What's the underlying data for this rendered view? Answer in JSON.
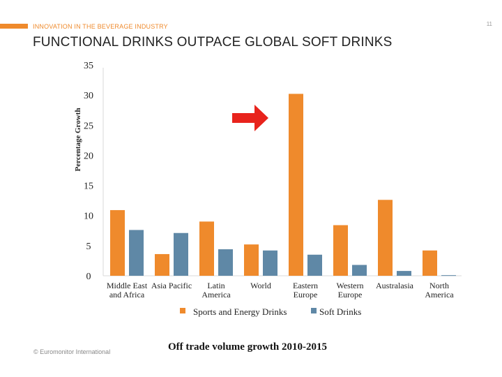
{
  "header": {
    "section": "INNOVATION IN THE BEVERAGE INDUSTRY",
    "page_number": "11",
    "title": "FUNCTIONAL DRINKS OUTPACE GLOBAL SOFT DRINKS"
  },
  "footer": {
    "source": "© Euromonitor International",
    "caption": "Off trade volume growth 2010-2015"
  },
  "colors": {
    "accent": "#ef8a2c",
    "sports_energy": "#ef8a2c",
    "soft_drinks": "#5f88a6",
    "arrow": "#e8231c"
  },
  "chart_data": {
    "type": "bar",
    "categories": [
      [
        "Middle East",
        "and Africa"
      ],
      [
        "Asia Pacific"
      ],
      [
        "Latin",
        "America"
      ],
      [
        "World"
      ],
      [
        "Eastern",
        "Europe"
      ],
      [
        "Western",
        "Europe"
      ],
      [
        "Australasia"
      ],
      [
        "North",
        "America"
      ]
    ],
    "series": [
      {
        "name": "Sports and Energy Drinks",
        "values": [
          10.9,
          3.6,
          9.0,
          5.2,
          30.2,
          8.4,
          12.6,
          4.2
        ]
      },
      {
        "name": "Soft Drinks",
        "values": [
          7.6,
          7.1,
          4.4,
          4.2,
          3.5,
          1.8,
          0.8,
          0.1
        ]
      }
    ],
    "ylabel": "Percentage Growth",
    "xlabel": "",
    "ylim": [
      0,
      35
    ],
    "yticks": [
      0,
      5,
      10,
      15,
      20,
      25,
      30,
      35
    ],
    "grid": false,
    "legend_position": "bottom",
    "annotation": "red arrow pointing to Eastern Europe"
  }
}
